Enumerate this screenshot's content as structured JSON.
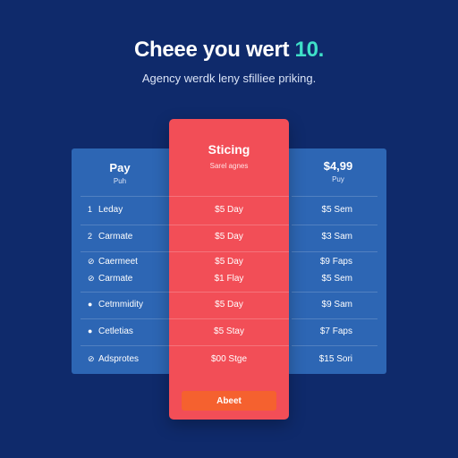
{
  "header": {
    "title_main": "Cheee you wert ",
    "title_accent": "10.",
    "subtitle": "Agency werdk leny sfilliee priking."
  },
  "plans": {
    "left": {
      "title": "Pay",
      "subtitle": "Puh",
      "rows": [
        {
          "mark": "1",
          "label": "Leday"
        },
        {
          "mark": "2",
          "label": "Carmate"
        },
        {
          "mark": "⊘",
          "label": "Caermeet"
        },
        {
          "mark": "⊘",
          "label": "Carmate"
        },
        {
          "mark": "●",
          "label": "Cetmmidity"
        },
        {
          "mark": "●",
          "label": "Cetletias"
        },
        {
          "mark": "⊘",
          "label": "Adsprotes"
        }
      ]
    },
    "featured": {
      "title": "Sticing",
      "subtitle": "Sarel agnes",
      "rows": [
        "$5 Day",
        "$5 Day",
        "$5 Day",
        "$1 Flay",
        "$5 Day",
        "$5 Stay",
        "$00 Stge"
      ],
      "cta_label": "Abeet"
    },
    "right": {
      "title": "$4,99",
      "subtitle": "Puy",
      "rows": [
        "$5 Sem",
        "$3 Sam",
        "$9 Faps",
        "$5 Sem",
        "$9 Sam",
        "$7 Faps",
        "$15 Sori"
      ]
    }
  },
  "colors": {
    "background": "#0f2a6b",
    "panel": "#2d66b4",
    "featured": "#f24e57",
    "accent": "#3fe0c8",
    "cta": "#f5612f"
  }
}
